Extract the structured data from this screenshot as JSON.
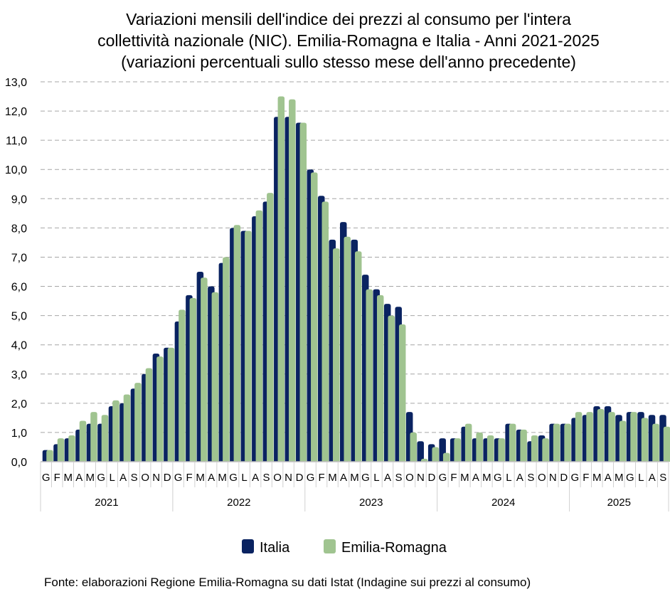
{
  "chart_data": {
    "type": "bar",
    "title": [
      "Variazioni mensili dell'indice dei prezzi al consumo per l'intera",
      "collettività nazionale (NIC). Emilia-Romagna e Italia - Anni 2021-2025",
      "(variazioni percentuali sullo stesso mese dell'anno precedente)"
    ],
    "source": "Fonte: elaborazioni Regione Emilia-Romagna su dati Istat (Indagine sui prezzi al consumo)",
    "ylim": [
      0,
      13
    ],
    "ytick_step": 1,
    "ytick_labels": [
      "0,0",
      "1,0",
      "2,0",
      "3,0",
      "4,0",
      "5,0",
      "6,0",
      "7,0",
      "8,0",
      "9,0",
      "10,0",
      "11,0",
      "12,0",
      "13,0"
    ],
    "grid": "horizontal dashed",
    "legend_position": "bottom",
    "years": [
      {
        "label": "2021",
        "months": [
          "G",
          "F",
          "M",
          "A",
          "M",
          "G",
          "L",
          "A",
          "S",
          "O",
          "N",
          "D"
        ]
      },
      {
        "label": "2022",
        "months": [
          "G",
          "F",
          "M",
          "A",
          "M",
          "G",
          "L",
          "A",
          "S",
          "O",
          "N",
          "D"
        ]
      },
      {
        "label": "2023",
        "months": [
          "G",
          "F",
          "M",
          "A",
          "M",
          "G",
          "L",
          "A",
          "S",
          "O",
          "N",
          "D"
        ]
      },
      {
        "label": "2024",
        "months": [
          "G",
          "F",
          "M",
          "A",
          "M",
          "G",
          "L",
          "A",
          "S",
          "O",
          "N",
          "D"
        ]
      },
      {
        "label": "2025",
        "months": [
          "G",
          "F",
          "M",
          "A",
          "M",
          "G",
          "L",
          "A",
          "S"
        ]
      }
    ],
    "series": [
      {
        "name": "Italia",
        "color": "#0a2361",
        "values": [
          0.4,
          0.6,
          0.8,
          1.1,
          1.3,
          1.3,
          1.9,
          2.0,
          2.5,
          3.0,
          3.7,
          3.9,
          4.8,
          5.7,
          6.5,
          6.0,
          6.8,
          8.0,
          7.9,
          8.4,
          8.9,
          11.8,
          11.8,
          11.6,
          10.0,
          9.1,
          7.6,
          8.2,
          7.6,
          6.4,
          5.9,
          5.4,
          5.3,
          1.7,
          0.7,
          0.6,
          0.8,
          0.8,
          1.2,
          0.8,
          0.8,
          0.8,
          1.3,
          1.1,
          0.7,
          0.9,
          1.3,
          1.3,
          1.5,
          1.6,
          1.9,
          1.9,
          1.6,
          1.7,
          1.7,
          1.6,
          1.6
        ]
      },
      {
        "name": "Emilia-Romagna",
        "color": "#a0c490",
        "values": [
          0.4,
          0.8,
          0.9,
          1.4,
          1.7,
          1.6,
          2.1,
          2.3,
          2.7,
          3.2,
          3.6,
          3.9,
          5.2,
          5.6,
          6.3,
          5.8,
          7.0,
          8.1,
          7.9,
          8.6,
          9.2,
          12.5,
          12.4,
          11.6,
          9.9,
          8.9,
          7.3,
          7.7,
          7.2,
          5.9,
          5.7,
          5.0,
          4.7,
          1.0,
          0.1,
          0.5,
          0.3,
          0.8,
          1.3,
          1.0,
          0.9,
          0.8,
          1.3,
          1.1,
          0.9,
          0.8,
          1.3,
          1.3,
          1.7,
          1.7,
          1.8,
          1.7,
          1.4,
          1.7,
          1.5,
          1.3,
          1.2
        ]
      }
    ]
  }
}
